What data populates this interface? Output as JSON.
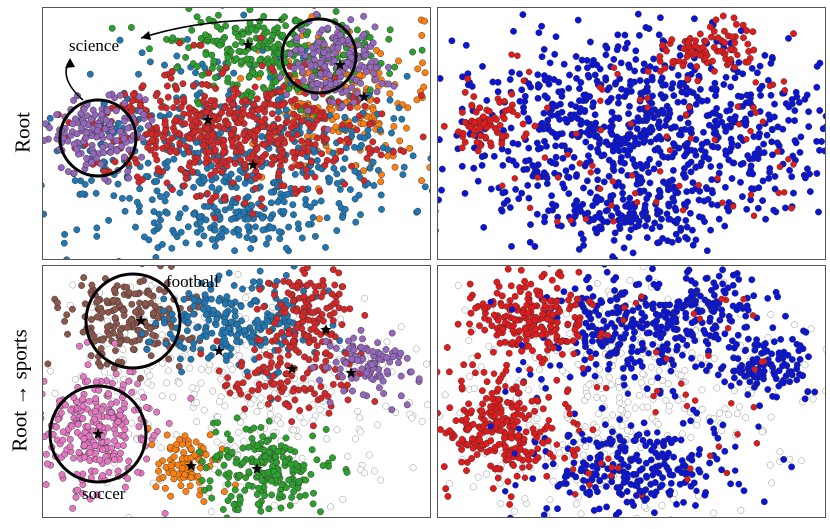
{
  "figure": {
    "row_labels": [
      "Root",
      "Root → sports"
    ]
  },
  "colors": {
    "red": "#d62728",
    "green": "#2ca02c",
    "blue_t": "#1f77b4",
    "orange": "#ff7f0e",
    "purple": "#9467bd",
    "brown": "#8c564b",
    "pink": "#e377c2",
    "blue": "#0a14d8",
    "red2": "#e31a1c",
    "white": "#ffffff"
  },
  "chart_data": [
    {
      "type": "scatter",
      "panel": "top-left",
      "description_kind": "t-SNE embedding colored by topic cluster",
      "annotations": [
        {
          "text": "science"
        }
      ],
      "clusters": [
        {
          "color": "green"
        },
        {
          "color": "purple"
        },
        {
          "color": "red"
        },
        {
          "color": "blue_t"
        },
        {
          "color": "orange"
        }
      ]
    },
    {
      "type": "scatter",
      "panel": "top-right",
      "clusters": [
        {
          "color": "blue"
        },
        {
          "color": "red2"
        }
      ]
    },
    {
      "type": "scatter",
      "panel": "bottom-left",
      "annotations": [
        {
          "text": "football"
        },
        {
          "text": "soccer"
        }
      ],
      "clusters": [
        {
          "color": "brown"
        },
        {
          "color": "pink"
        },
        {
          "color": "blue_t"
        },
        {
          "color": "red"
        },
        {
          "color": "purple"
        },
        {
          "color": "orange"
        },
        {
          "color": "green"
        }
      ]
    },
    {
      "type": "scatter",
      "panel": "bottom-right",
      "clusters": [
        {
          "color": "red2"
        },
        {
          "color": "blue"
        },
        {
          "color": "white"
        }
      ]
    }
  ]
}
